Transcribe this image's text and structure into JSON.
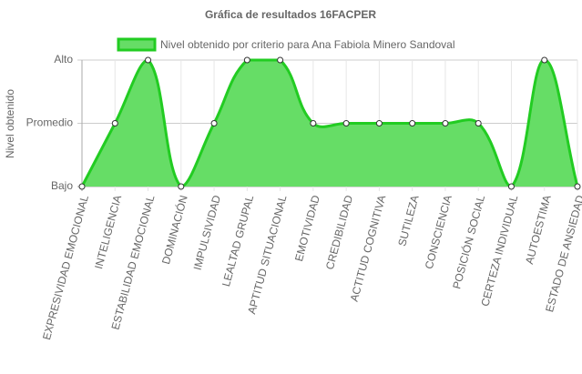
{
  "chart_data": {
    "type": "area",
    "title": "Gráfica de resultados 16FACPER",
    "y_label": "Nivel obtenido",
    "categories": [
      "EXPRESIVIDAD EMOCIONAL",
      "INTELIGENCIA",
      "ESTABILIDAD EMOCIONAL",
      "DOMINACIÓN",
      "IMPULSIVIDAD",
      "LEALTAD GRUPAL",
      "APTITUD SITUACIONAL",
      "EMOTIVIDAD",
      "CREDIBILIDAD",
      "ACTITUD COGNITIVA",
      "SUTILEZA",
      "CONSCIENCIA",
      "POSICIÓN SOCIAL",
      "CERTEZA INDIVIDUAL",
      "AUTOESTIMA",
      "ESTADO DE ANSIEDAD"
    ],
    "series": [
      {
        "name": "Nivel obtenido por criterio para Ana Fabiola Minero Sandoval",
        "color": "#22cc22",
        "fill": "#66dd66",
        "values": [
          1,
          2,
          3,
          1,
          2,
          3,
          3,
          2,
          2,
          2,
          2,
          2,
          2,
          1,
          3,
          1
        ]
      }
    ],
    "ylim": [
      1,
      3
    ],
    "yticks": [
      {
        "value": 1,
        "label": "Bajo"
      },
      {
        "value": 2,
        "label": "Promedio"
      },
      {
        "value": 3,
        "label": "Alto"
      }
    ],
    "grid": true,
    "legend": "top"
  }
}
